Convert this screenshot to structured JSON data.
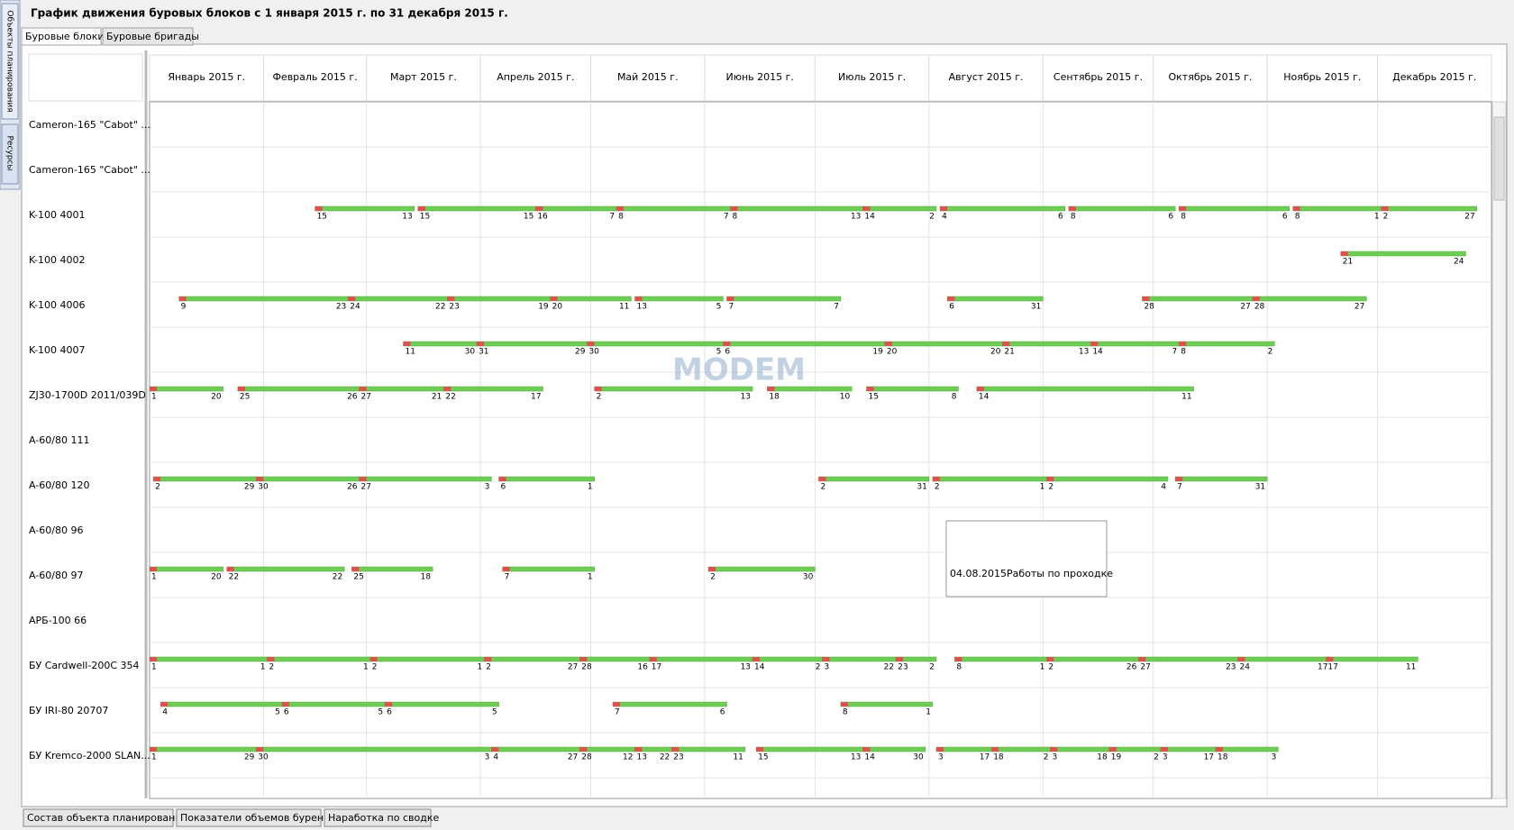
{
  "header": {
    "title": "График движения буровых блоков с 1 января 2015 г. по 31 декабря 2015 г."
  },
  "side_tabs": [
    "Объекты планирования",
    "Ресурсы"
  ],
  "tabs": [
    "Буровые блоки",
    "Буровые бригады"
  ],
  "months": [
    "Январь 2015 г.",
    "Февраль 2015 г.",
    "Март 2015 г.",
    "Апрель 2015 г.",
    "Май 2015 г.",
    "Июнь 2015 г.",
    "Июль 2015 г.",
    "Август 2015 г.",
    "Сентябрь 2015 г.",
    "Октябрь 2015 г.",
    "Ноябрь 2015 г.",
    "Декабрь 2015 г."
  ],
  "watermark": "MODEM",
  "rows": [
    {
      "label": "Cameron-165 \"Cabot\" ...",
      "segments": []
    },
    {
      "label": "Cameron-165 \"Cabot\" ...",
      "segments": []
    },
    {
      "label": "K-100 4001",
      "segments": [
        {
          "start": "2015-02-15",
          "end": "2015-03-13",
          "start_day": 15,
          "end_day": 13
        },
        {
          "start": "2015-03-15",
          "end": "2015-04-15",
          "start_day": 15,
          "end_day": 15
        },
        {
          "start": "2015-04-16",
          "end": "2015-05-07",
          "start_day": 16,
          "end_day": 7
        },
        {
          "start": "2015-05-08",
          "end": "2015-06-07",
          "start_day": 8,
          "end_day": 7
        },
        {
          "start": "2015-06-08",
          "end": "2015-07-13",
          "start_day": 8,
          "end_day": 13
        },
        {
          "start": "2015-07-14",
          "end": "2015-08-02",
          "start_day": 14,
          "end_day": 2
        },
        {
          "start": "2015-08-04",
          "end": "2015-09-06",
          "start_day": 4,
          "end_day": 6
        },
        {
          "start": "2015-09-08",
          "end": "2015-10-06",
          "start_day": 8,
          "end_day": 6
        },
        {
          "start": "2015-10-08",
          "end": "2015-11-06",
          "start_day": 8,
          "end_day": 6
        },
        {
          "start": "2015-11-08",
          "end": "2015-12-01",
          "start_day": 8,
          "end_day": 1
        },
        {
          "start": "2015-12-02",
          "end": "2015-12-27",
          "start_day": 2,
          "end_day": 27
        }
      ]
    },
    {
      "label": "K-100 4002",
      "segments": [
        {
          "start": "2015-11-21",
          "end": "2015-12-24",
          "start_day": 21,
          "end_day": 24
        }
      ]
    },
    {
      "label": "K-100 4006",
      "segments": [
        {
          "start": "2015-01-09",
          "end": "2015-02-23",
          "start_day": 9,
          "end_day": 23
        },
        {
          "start": "2015-02-24",
          "end": "2015-03-22",
          "start_day": 24,
          "end_day": 22
        },
        {
          "start": "2015-03-23",
          "end": "2015-04-19",
          "start_day": 23,
          "end_day": 19
        },
        {
          "start": "2015-04-20",
          "end": "2015-05-11",
          "start_day": 20,
          "end_day": 11
        },
        {
          "start": "2015-05-13",
          "end": "2015-06-05",
          "start_day": 13,
          "end_day": 5
        },
        {
          "start": "2015-06-07",
          "end": "2015-07-07",
          "start_day": 7,
          "end_day": 7
        },
        {
          "start": "2015-08-06",
          "end": "2015-08-31",
          "start_day": 6,
          "end_day": 31
        },
        {
          "start": "2015-09-28",
          "end": "2015-10-27",
          "start_day": 28,
          "end_day": 27
        },
        {
          "start": "2015-10-28",
          "end": "2015-11-27",
          "start_day": 28,
          "end_day": 27
        }
      ]
    },
    {
      "label": "K-100 4007",
      "segments": [
        {
          "start": "2015-03-11",
          "end": "2015-03-30",
          "start_day": 11,
          "end_day": 30
        },
        {
          "start": "2015-03-31",
          "end": "2015-04-29",
          "start_day": 31,
          "end_day": 29
        },
        {
          "start": "2015-04-30",
          "end": "2015-06-05",
          "start_day": 30,
          "end_day": 5
        },
        {
          "start": "2015-06-06",
          "end": "2015-07-19",
          "start_day": 6,
          "end_day": 19
        },
        {
          "start": "2015-07-20",
          "end": "2015-08-20",
          "start_day": 20,
          "end_day": 20
        },
        {
          "start": "2015-08-21",
          "end": "2015-09-13",
          "start_day": 21,
          "end_day": 13
        },
        {
          "start": "2015-09-14",
          "end": "2015-10-07",
          "start_day": 14,
          "end_day": 7
        },
        {
          "start": "2015-10-08",
          "end": "2015-11-02",
          "start_day": 8,
          "end_day": 2
        }
      ]
    },
    {
      "label": "ZJ30-1700D 2011/039D",
      "segments": [
        {
          "start": "2015-01-01",
          "end": "2015-01-20",
          "start_day": 1,
          "end_day": 20
        },
        {
          "start": "2015-01-25",
          "end": "2015-02-26",
          "start_day": 25,
          "end_day": 26
        },
        {
          "start": "2015-02-27",
          "end": "2015-03-21",
          "start_day": 27,
          "end_day": 21
        },
        {
          "start": "2015-03-22",
          "end": "2015-04-17",
          "start_day": 22,
          "end_day": 17
        },
        {
          "start": "2015-05-02",
          "end": "2015-06-13",
          "start_day": 2,
          "end_day": 13
        },
        {
          "start": "2015-06-18",
          "end": "2015-07-10",
          "start_day": 18,
          "end_day": 10
        },
        {
          "start": "2015-07-15",
          "end": "2015-08-08",
          "start_day": 15,
          "end_day": 8
        },
        {
          "start": "2015-08-14",
          "end": "2015-10-11",
          "start_day": 14,
          "end_day": 11
        }
      ]
    },
    {
      "label": "A-60/80 111",
      "segments": []
    },
    {
      "label": "A-60/80 120",
      "segments": [
        {
          "start": "2015-01-02",
          "end": "2015-01-29",
          "start_day": 2,
          "end_day": 29
        },
        {
          "start": "2015-01-30",
          "end": "2015-02-26",
          "start_day": 30,
          "end_day": 26
        },
        {
          "start": "2015-02-27",
          "end": "2015-04-03",
          "start_day": 27,
          "end_day": 3
        },
        {
          "start": "2015-04-06",
          "end": "2015-05-01",
          "start_day": 6,
          "end_day": 1
        },
        {
          "start": "2015-07-02",
          "end": "2015-07-31",
          "start_day": 2,
          "end_day": 31
        },
        {
          "start": "2015-08-02",
          "end": "2015-09-01",
          "start_day": 2,
          "end_day": 1
        },
        {
          "start": "2015-09-02",
          "end": "2015-10-04",
          "start_day": 2,
          "end_day": 4
        },
        {
          "start": "2015-10-07",
          "end": "2015-10-31",
          "start_day": 7,
          "end_day": 31
        }
      ]
    },
    {
      "label": "A-60/80 96",
      "segments": []
    },
    {
      "label": "A-60/80 97",
      "segments": [
        {
          "start": "2015-01-01",
          "end": "2015-01-20",
          "start_day": 1,
          "end_day": 20
        },
        {
          "start": "2015-01-22",
          "end": "2015-02-22",
          "start_day": 22,
          "end_day": 22
        },
        {
          "start": "2015-02-25",
          "end": "2015-03-18",
          "start_day": 25,
          "end_day": 18
        },
        {
          "start": "2015-04-07",
          "end": "2015-05-01",
          "start_day": 7,
          "end_day": 1
        },
        {
          "start": "2015-06-02",
          "end": "2015-06-30",
          "start_day": 2,
          "end_day": 30
        }
      ]
    },
    {
      "label": "АРБ-100 66",
      "segments": []
    },
    {
      "label": "БУ Cardwell-200C 354",
      "segments": [
        {
          "start": "2015-01-01",
          "end": "2015-02-01",
          "start_day": 1,
          "end_day": 1
        },
        {
          "start": "2015-02-02",
          "end": "2015-03-01",
          "start_day": 2,
          "end_day": 1
        },
        {
          "start": "2015-03-02",
          "end": "2015-04-01",
          "start_day": 2,
          "end_day": 1
        },
        {
          "start": "2015-04-02",
          "end": "2015-04-27",
          "start_day": 2,
          "end_day": 27
        },
        {
          "start": "2015-04-28",
          "end": "2015-05-16",
          "start_day": 28,
          "end_day": 16
        },
        {
          "start": "2015-05-17",
          "end": "2015-06-13",
          "start_day": 17,
          "end_day": 13
        },
        {
          "start": "2015-06-14",
          "end": "2015-07-02",
          "start_day": 14,
          "end_day": 2
        },
        {
          "start": "2015-07-03",
          "end": "2015-07-22",
          "start_day": 3,
          "end_day": 22
        },
        {
          "start": "2015-07-23",
          "end": "2015-08-02",
          "start_day": 23,
          "end_day": 2
        },
        {
          "start": "2015-08-08",
          "end": "2015-09-01",
          "start_day": 8,
          "end_day": 1
        },
        {
          "start": "2015-09-02",
          "end": "2015-09-26",
          "start_day": 2,
          "end_day": 26
        },
        {
          "start": "2015-09-27",
          "end": "2015-10-23",
          "start_day": 27,
          "end_day": 23
        },
        {
          "start": "2015-10-24",
          "end": "2015-11-17",
          "start_day": 24,
          "end_day": 17
        },
        {
          "start": "2015-11-17",
          "end": "2015-12-11",
          "start_day": 17,
          "end_day": 11
        }
      ]
    },
    {
      "label": "БУ IRI-80 20707",
      "segments": [
        {
          "start": "2015-01-04",
          "end": "2015-02-05",
          "start_day": 4,
          "end_day": 5
        },
        {
          "start": "2015-02-06",
          "end": "2015-03-05",
          "start_day": 6,
          "end_day": 5
        },
        {
          "start": "2015-03-06",
          "end": "2015-04-05",
          "start_day": 6,
          "end_day": 5
        },
        {
          "start": "2015-05-07",
          "end": "2015-06-06",
          "start_day": 7,
          "end_day": 6
        },
        {
          "start": "2015-07-08",
          "end": "2015-08-01",
          "start_day": 8,
          "end_day": 1
        }
      ]
    },
    {
      "label": "БУ Kremco-2000 SLAN...",
      "segments": [
        {
          "start": "2015-01-01",
          "end": "2015-01-29",
          "start_day": 1,
          "end_day": 29
        },
        {
          "start": "2015-01-30",
          "end": "2015-04-03",
          "start_day": 30,
          "end_day": 3
        },
        {
          "start": "2015-04-04",
          "end": "2015-04-27",
          "start_day": 4,
          "end_day": 27
        },
        {
          "start": "2015-04-28",
          "end": "2015-05-12",
          "start_day": 28,
          "end_day": 12
        },
        {
          "start": "2015-05-13",
          "end": "2015-05-22",
          "start_day": 13,
          "end_day": 22
        },
        {
          "start": "2015-05-23",
          "end": "2015-06-11",
          "start_day": 23,
          "end_day": 11
        },
        {
          "start": "2015-06-15",
          "end": "2015-07-13",
          "start_day": 15,
          "end_day": 13
        },
        {
          "start": "2015-07-14",
          "end": "2015-07-30",
          "start_day": 14,
          "end_day": 30
        },
        {
          "start": "2015-08-03",
          "end": "2015-08-17",
          "start_day": 3,
          "end_day": 17
        },
        {
          "start": "2015-08-18",
          "end": "2015-09-02",
          "start_day": 18,
          "end_day": 2
        },
        {
          "start": "2015-09-03",
          "end": "2015-09-18",
          "start_day": 3,
          "end_day": 18
        },
        {
          "start": "2015-09-19",
          "end": "2015-10-02",
          "start_day": 19,
          "end_day": 2
        },
        {
          "start": "2015-10-03",
          "end": "2015-10-17",
          "start_day": 3,
          "end_day": 17
        },
        {
          "start": "2015-10-18",
          "end": "2015-11-03",
          "start_day": 18,
          "end_day": 3
        }
      ]
    }
  ],
  "tooltip": {
    "date": "04.08.2015",
    "text": "Работы по проходке"
  },
  "bottom_tabs": [
    "Состав объекта планирования",
    "Показатели объемов бурения",
    "Наработка по сводке"
  ]
}
